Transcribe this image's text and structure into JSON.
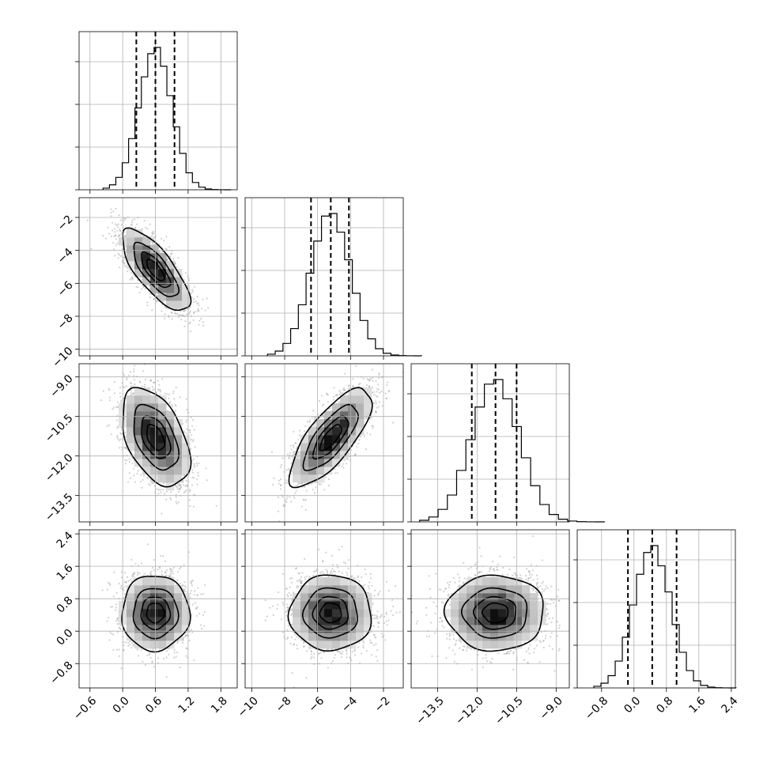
{
  "chart_data": {
    "type": "corner",
    "title": "",
    "parameters": [
      {
        "name": "",
        "range": [
          -0.8,
          2.1
        ],
        "mean": 0.6,
        "std": 0.3,
        "quantiles": [
          0.25,
          0.6,
          0.95
        ],
        "ticks": [
          -0.6,
          0.0,
          0.6,
          1.2,
          1.8
        ],
        "tick_labels": [
          "−0.6",
          "0.0",
          "0.6",
          "1.2",
          "1.8"
        ]
      },
      {
        "name": "",
        "range": [
          -10.4,
          -0.8
        ],
        "mean": -5.2,
        "std": 1.2,
        "quantiles": [
          -6.4,
          -5.2,
          -4.1
        ],
        "ticks": [
          -10,
          -8,
          -6,
          -4,
          -2
        ],
        "tick_labels": [
          "−10",
          "−8",
          "−6",
          "−4",
          "−2"
        ]
      },
      {
        "name": "",
        "range": [
          -14.5,
          -8.5
        ],
        "mean": -11.3,
        "std": 0.9,
        "quantiles": [
          -12.2,
          -11.3,
          -10.5
        ],
        "ticks": [
          -13.5,
          -12.0,
          -10.5,
          -9.0
        ],
        "tick_labels": [
          "−13.5",
          "−12.0",
          "−10.5",
          "−9.0"
        ]
      },
      {
        "name": "",
        "range": [
          -1.4,
          2.5
        ],
        "mean": 0.45,
        "std": 0.45,
        "quantiles": [
          -0.15,
          0.45,
          1.05
        ],
        "ticks": [
          -0.8,
          0.0,
          0.8,
          1.6,
          2.4
        ],
        "tick_labels": [
          "−0.8",
          "0.0",
          "0.8",
          "1.6",
          "2.4"
        ]
      }
    ],
    "correlations": [
      {
        "pair": [
          0,
          1
        ],
        "rho": -0.75
      },
      {
        "pair": [
          0,
          2
        ],
        "rho": -0.45
      },
      {
        "pair": [
          1,
          2
        ],
        "rho": 0.75
      },
      {
        "pair": [
          0,
          3
        ],
        "rho": 0.0
      },
      {
        "pair": [
          1,
          3
        ],
        "rho": 0.0
      },
      {
        "pair": [
          2,
          3
        ],
        "rho": 0.0
      }
    ],
    "contour_levels_sigma": [
      0.5,
      1.0,
      1.5,
      2.0
    ],
    "histogram_bins": 20,
    "grid": true,
    "legend": "none"
  }
}
